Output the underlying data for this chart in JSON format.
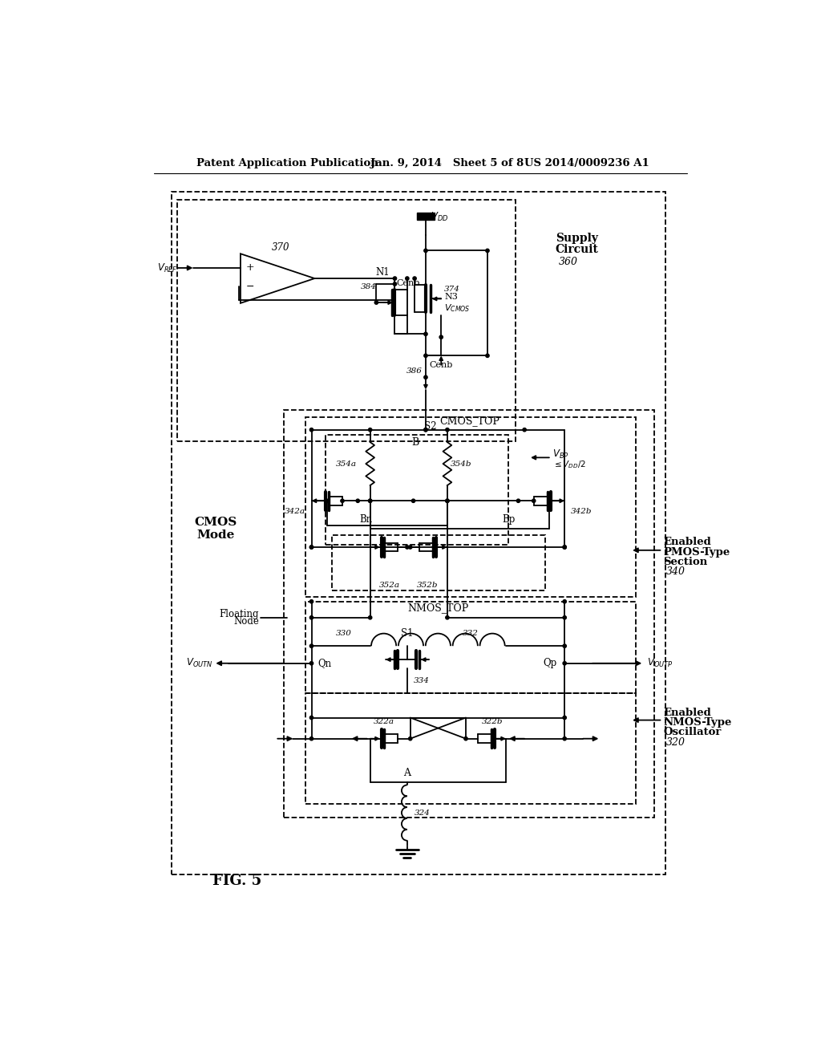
{
  "header_left": "Patent Application Publication",
  "header_center": "Jan. 9, 2014   Sheet 5 of 8",
  "header_right": "US 2014/0009236 A1",
  "title": "FIG. 5",
  "bg_color": "#ffffff",
  "lc": "#000000"
}
